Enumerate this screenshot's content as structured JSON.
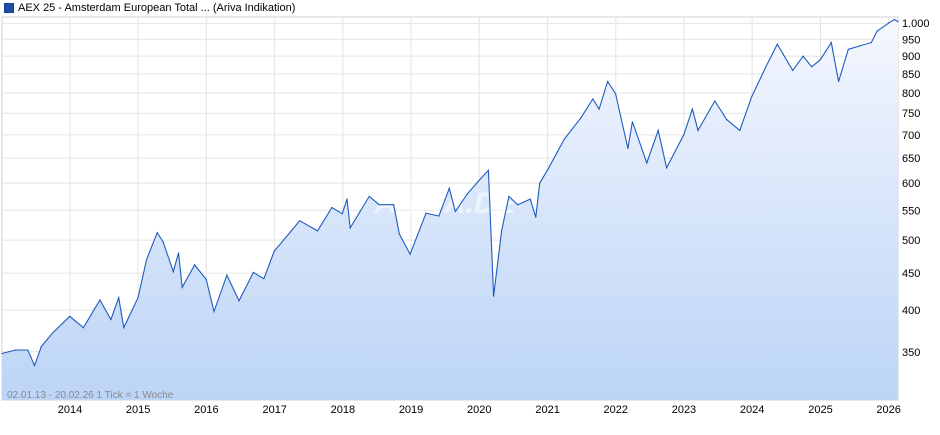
{
  "legend": {
    "label": "AEX 25 - Amsterdam European Total ... (Ariva Indikation)",
    "color": "#1a4fa8"
  },
  "footnote": "02.01.13 - 20.02.26    1 Tick = 1 Woche",
  "watermark": "ARIVA.DE",
  "colors": {
    "line": "#1f5bbf",
    "fill_top": "#f4f7fe",
    "fill_bottom": "#bcd4f6",
    "grid": "#e4e4e4"
  },
  "chart_data": {
    "type": "area",
    "title": "",
    "xlabel": "",
    "ylabel": "",
    "y_scale": "log",
    "grid": true,
    "x_tick_labels": [
      "2014",
      "2015",
      "2016",
      "2017",
      "2018",
      "2019",
      "2020",
      "2021",
      "2022",
      "2023",
      "2024",
      "2025",
      "2026"
    ],
    "y_tick_labels": [
      "350",
      "400",
      "450",
      "500",
      "550",
      "600",
      "650",
      "700",
      "750",
      "800",
      "850",
      "900",
      "950",
      "1.000"
    ],
    "y_ticks": [
      350,
      400,
      450,
      500,
      550,
      600,
      650,
      700,
      750,
      800,
      850,
      900,
      950,
      1000
    ],
    "xlim": [
      "2013-01-02",
      "2026-02-20"
    ],
    "ylim": [
      300,
      1020
    ],
    "series": [
      {
        "values": [
          [
            "2013-01-02",
            348
          ],
          [
            "2013-03-15",
            352
          ],
          [
            "2013-05-20",
            352
          ],
          [
            "2013-06-25",
            335
          ],
          [
            "2013-08-01",
            356
          ],
          [
            "2013-10-01",
            372
          ],
          [
            "2013-12-31",
            392
          ],
          [
            "2014-03-14",
            378
          ],
          [
            "2014-06-10",
            413
          ],
          [
            "2014-08-08",
            388
          ],
          [
            "2014-09-19",
            416
          ],
          [
            "2014-10-16",
            378
          ],
          [
            "2014-12-31",
            416
          ],
          [
            "2015-02-15",
            470
          ],
          [
            "2015-04-13",
            512
          ],
          [
            "2015-05-15",
            497
          ],
          [
            "2015-07-08",
            452
          ],
          [
            "2015-08-05",
            480
          ],
          [
            "2015-08-25",
            430
          ],
          [
            "2015-10-30",
            462
          ],
          [
            "2015-12-31",
            441
          ],
          [
            "2016-02-11",
            398
          ],
          [
            "2016-04-20",
            447
          ],
          [
            "2016-06-24",
            412
          ],
          [
            "2016-09-09",
            451
          ],
          [
            "2016-11-04",
            442
          ],
          [
            "2016-12-30",
            483
          ],
          [
            "2017-03-31",
            515
          ],
          [
            "2017-05-15",
            532
          ],
          [
            "2017-08-18",
            515
          ],
          [
            "2017-11-03",
            555
          ],
          [
            "2017-12-29",
            544
          ],
          [
            "2018-01-23",
            570
          ],
          [
            "2018-02-09",
            520
          ],
          [
            "2018-05-22",
            575
          ],
          [
            "2018-07-15",
            560
          ],
          [
            "2018-09-30",
            560
          ],
          [
            "2018-10-30",
            510
          ],
          [
            "2018-12-27",
            478
          ],
          [
            "2019-03-22",
            545
          ],
          [
            "2019-05-30",
            540
          ],
          [
            "2019-07-25",
            590
          ],
          [
            "2019-08-26",
            548
          ],
          [
            "2019-10-30",
            580
          ],
          [
            "2019-12-31",
            605
          ],
          [
            "2020-02-19",
            625
          ],
          [
            "2020-03-18",
            418
          ],
          [
            "2020-04-30",
            515
          ],
          [
            "2020-06-08",
            575
          ],
          [
            "2020-07-25",
            560
          ],
          [
            "2020-09-30",
            570
          ],
          [
            "2020-10-30",
            538
          ],
          [
            "2020-11-20",
            600
          ],
          [
            "2020-12-31",
            625
          ],
          [
            "2021-03-31",
            690
          ],
          [
            "2021-06-30",
            740
          ],
          [
            "2021-08-31",
            785
          ],
          [
            "2021-10-04",
            760
          ],
          [
            "2021-11-18",
            830
          ],
          [
            "2021-12-31",
            798
          ],
          [
            "2022-03-07",
            670
          ],
          [
            "2022-03-31",
            730
          ],
          [
            "2022-06-16",
            640
          ],
          [
            "2022-08-16",
            710
          ],
          [
            "2022-09-30",
            630
          ],
          [
            "2022-12-31",
            700
          ],
          [
            "2023-02-15",
            760
          ],
          [
            "2023-03-17",
            710
          ],
          [
            "2023-06-15",
            780
          ],
          [
            "2023-08-18",
            735
          ],
          [
            "2023-10-27",
            710
          ],
          [
            "2023-12-29",
            790
          ],
          [
            "2024-03-15",
            870
          ],
          [
            "2024-05-15",
            935
          ],
          [
            "2024-08-05",
            860
          ],
          [
            "2024-09-30",
            900
          ],
          [
            "2024-11-15",
            870
          ],
          [
            "2024-12-31",
            890
          ],
          [
            "2025-02-28",
            940
          ],
          [
            "2025-04-08",
            830
          ],
          [
            "2025-05-30",
            920
          ],
          [
            "2025-07-31",
            930
          ],
          [
            "2025-09-30",
            940
          ],
          [
            "2025-10-31",
            975
          ],
          [
            "2025-12-31",
            1000
          ],
          [
            "2026-01-31",
            1012
          ],
          [
            "2026-02-20",
            1005
          ]
        ]
      }
    ]
  }
}
